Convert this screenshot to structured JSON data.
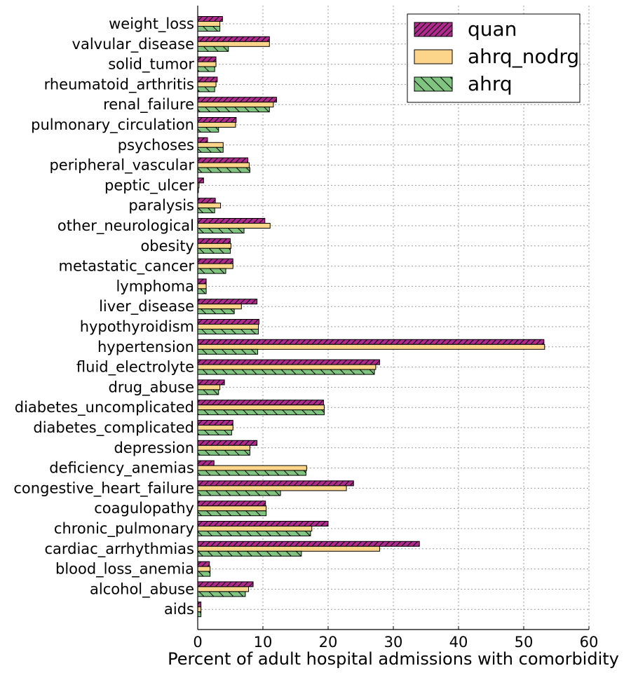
{
  "chart_data": {
    "type": "bar",
    "orientation": "horizontal",
    "xlabel": "Percent of adult hospital admissions with comorbidity",
    "xlim": [
      0,
      60
    ],
    "xticks": [
      0,
      10,
      20,
      30,
      40,
      50,
      60
    ],
    "grid": true,
    "legend_position": "top-right",
    "categories": [
      "weight_loss",
      "valvular_disease",
      "solid_tumor",
      "rheumatoid_arthritis",
      "renal_failure",
      "pulmonary_circulation",
      "psychoses",
      "peripheral_vascular",
      "peptic_ulcer",
      "paralysis",
      "other_neurological",
      "obesity",
      "metastatic_cancer",
      "lymphoma",
      "liver_disease",
      "hypothyroidism",
      "hypertension",
      "fluid_electrolyte",
      "drug_abuse",
      "diabetes_uncomplicated",
      "diabetes_complicated",
      "depression",
      "deficiency_anemias",
      "congestive_heart_failure",
      "coagulopathy",
      "chronic_pulmonary",
      "cardiac_arrhythmias",
      "blood_loss_anemia",
      "alcohol_abuse",
      "aids"
    ],
    "series": [
      {
        "name": "quan",
        "color": "#b0298e",
        "hatch": "diagonal",
        "values": [
          3.8,
          11.0,
          2.8,
          3.0,
          12.1,
          5.9,
          1.5,
          7.7,
          0.9,
          2.7,
          10.3,
          5.0,
          5.4,
          1.3,
          9.1,
          9.4,
          53.1,
          27.9,
          4.1,
          19.3,
          5.4,
          9.1,
          2.5,
          23.9,
          10.4,
          20.0,
          34.0,
          1.8,
          8.5,
          0.5
        ]
      },
      {
        "name": "ahrq_nodrg",
        "color": "#fdd58a",
        "hatch": "none",
        "values": [
          3.4,
          11.0,
          2.8,
          2.8,
          11.6,
          5.8,
          3.9,
          7.9,
          0.2,
          3.5,
          11.1,
          5.1,
          5.4,
          1.3,
          6.7,
          9.3,
          53.2,
          27.3,
          3.4,
          19.4,
          5.4,
          8.0,
          16.7,
          22.8,
          10.5,
          17.5,
          27.9,
          1.9,
          7.8,
          0.5
        ]
      },
      {
        "name": "ahrq",
        "color": "#7fc47f",
        "hatch": "back-diagonal",
        "values": [
          3.4,
          4.7,
          2.6,
          2.6,
          11.0,
          3.2,
          3.9,
          8.0,
          0.1,
          2.6,
          7.1,
          5.0,
          4.3,
          1.3,
          5.6,
          9.3,
          9.2,
          27.1,
          3.2,
          19.4,
          5.2,
          8.0,
          16.6,
          12.7,
          10.5,
          17.3,
          15.9,
          1.9,
          7.3,
          0.5
        ]
      }
    ]
  }
}
